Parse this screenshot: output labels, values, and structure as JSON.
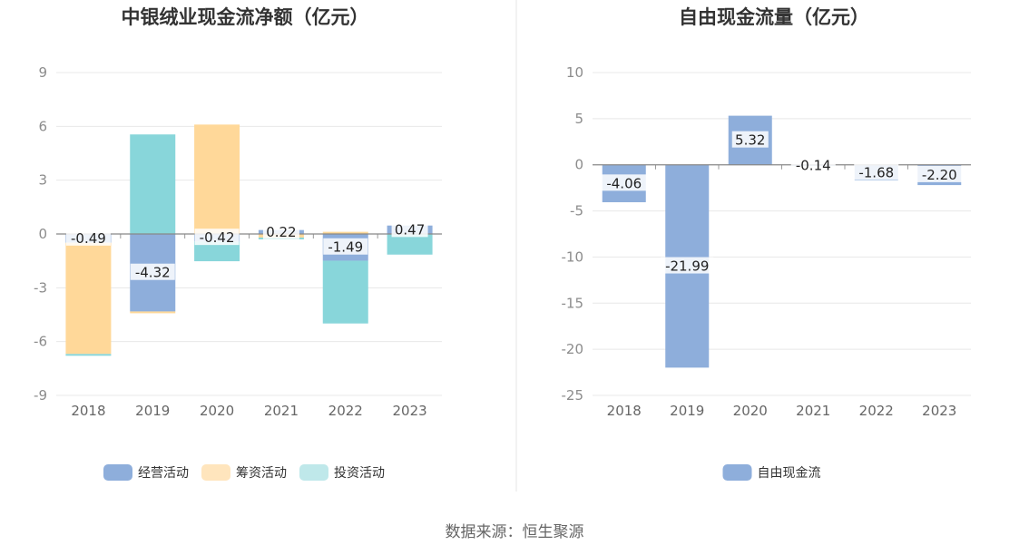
{
  "source": "数据来源：恒生聚源",
  "chart_data": [
    {
      "type": "bar",
      "stacked": true,
      "title": "中银绒业现金流净额（亿元）",
      "categories": [
        "2018",
        "2019",
        "2020",
        "2021",
        "2022",
        "2023"
      ],
      "ylim": [
        -9,
        9
      ],
      "yticks": [
        9,
        6,
        3,
        0,
        -3,
        -6,
        -9
      ],
      "grid": true,
      "legend_position": "bottom",
      "series": [
        {
          "name": "经营活动",
          "color": "#8eaedb",
          "values": [
            -0.49,
            -4.32,
            -0.42,
            0.22,
            -1.49,
            0.47
          ]
        },
        {
          "name": "筹资活动",
          "color": "#ffd899",
          "values": [
            -6.2,
            -0.1,
            6.1,
            -0.2,
            0.12,
            0
          ]
        },
        {
          "name": "投资活动",
          "color": "#88d6da",
          "values": [
            -0.1,
            5.55,
            -1.1,
            -0.1,
            -3.5,
            -1.15
          ]
        }
      ],
      "data_labels": [
        "-0.49",
        "-4.32",
        "-0.42",
        "0.22",
        "-1.49",
        "0.47"
      ]
    },
    {
      "type": "bar",
      "title": "自由现金流量（亿元）",
      "categories": [
        "2018",
        "2019",
        "2020",
        "2021",
        "2022",
        "2023"
      ],
      "ylim": [
        -25,
        10
      ],
      "yticks": [
        10,
        5,
        0,
        -5,
        -10,
        -15,
        -20,
        -25
      ],
      "grid": true,
      "legend_position": "bottom",
      "series": [
        {
          "name": "自由现金流",
          "color": "#8eaedb",
          "values": [
            -4.06,
            -21.99,
            5.32,
            -0.14,
            -1.68,
            -2.2
          ]
        }
      ],
      "data_labels": [
        "-4.06",
        "-21.99",
        "5.32",
        "-0.14",
        "-1.68",
        "-2.20"
      ]
    }
  ]
}
